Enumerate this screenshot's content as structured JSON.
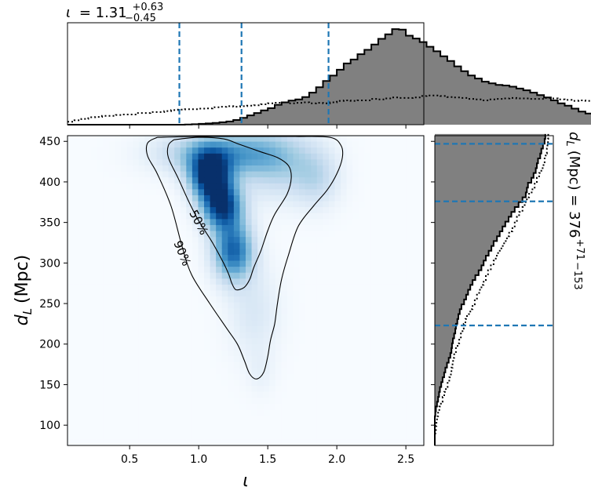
{
  "chart_data": {
    "type": "corner",
    "joint": {
      "type": "heatmap",
      "xlabel": "ι",
      "ylabel_base": "d",
      "ylabel_sub": "L",
      "ylabel_unit": "(Mpc)",
      "xlim": [
        0.05,
        2.63
      ],
      "ylim": [
        75,
        457
      ],
      "xticks": [
        "0.5",
        "1.0",
        "1.5",
        "2.0",
        "2.5"
      ],
      "yticks": [
        "100",
        "150",
        "200",
        "250",
        "300",
        "350",
        "400",
        "450"
      ],
      "colormap": "Blues",
      "density_peaks": [
        {
          "x": 1.08,
          "y": 408,
          "sx": 0.1,
          "sy": 20,
          "w": 1.0
        },
        {
          "x": 1.17,
          "y": 370,
          "sx": 0.1,
          "sy": 20,
          "w": 0.9
        },
        {
          "x": 1.25,
          "y": 315,
          "sx": 0.1,
          "sy": 25,
          "w": 0.75
        },
        {
          "x": 1.15,
          "y": 435,
          "sx": 0.28,
          "sy": 18,
          "w": 0.5
        },
        {
          "x": 1.55,
          "y": 425,
          "sx": 0.2,
          "sy": 30,
          "w": 0.3
        },
        {
          "x": 1.85,
          "y": 405,
          "sx": 0.12,
          "sy": 25,
          "w": 0.22
        },
        {
          "x": 1.4,
          "y": 240,
          "sx": 0.13,
          "sy": 40,
          "w": 0.14
        },
        {
          "x": 1.45,
          "y": 165,
          "sx": 0.07,
          "sy": 20,
          "w": 0.06
        }
      ],
      "contours": [
        {
          "label": "50%",
          "points": [
            [
              0.82,
              452
            ],
            [
              1.0,
              455
            ],
            [
              1.18,
              453
            ],
            [
              1.3,
              446
            ],
            [
              1.45,
              437
            ],
            [
              1.57,
              430
            ],
            [
              1.65,
              420
            ],
            [
              1.67,
              405
            ],
            [
              1.64,
              385
            ],
            [
              1.55,
              360
            ],
            [
              1.5,
              340
            ],
            [
              1.45,
              315
            ],
            [
              1.4,
              295
            ],
            [
              1.37,
              280
            ],
            [
              1.33,
              270
            ],
            [
              1.27,
              267
            ],
            [
              1.24,
              275
            ],
            [
              1.22,
              285
            ],
            [
              1.18,
              300
            ],
            [
              1.1,
              325
            ],
            [
              1.0,
              352
            ],
            [
              0.93,
              375
            ],
            [
              0.85,
              405
            ],
            [
              0.78,
              430
            ],
            [
              0.78,
              445
            ],
            [
              0.82,
              452
            ]
          ]
        },
        {
          "label": "90%",
          "points": [
            [
              0.7,
              455
            ],
            [
              1.0,
              456
            ],
            [
              1.35,
              456
            ],
            [
              1.7,
              456
            ],
            [
              1.95,
              455
            ],
            [
              2.03,
              445
            ],
            [
              2.04,
              430
            ],
            [
              2.0,
              410
            ],
            [
              1.93,
              390
            ],
            [
              1.83,
              370
            ],
            [
              1.72,
              345
            ],
            [
              1.65,
              310
            ],
            [
              1.6,
              280
            ],
            [
              1.57,
              250
            ],
            [
              1.55,
              225
            ],
            [
              1.52,
              205
            ],
            [
              1.5,
              185
            ],
            [
              1.47,
              165
            ],
            [
              1.42,
              157
            ],
            [
              1.37,
              163
            ],
            [
              1.33,
              180
            ],
            [
              1.28,
              200
            ],
            [
              1.2,
              220
            ],
            [
              1.08,
              250
            ],
            [
              0.95,
              285
            ],
            [
              0.88,
              320
            ],
            [
              0.8,
              370
            ],
            [
              0.7,
              410
            ],
            [
              0.63,
              432
            ],
            [
              0.63,
              448
            ],
            [
              0.7,
              455
            ]
          ]
        }
      ]
    },
    "top": {
      "type": "histogram",
      "title_symbol": "ι",
      "title_value": "= 1.31",
      "title_plus": "+0.63",
      "title_minus": "−0.45",
      "bin_edges_start": 0.05,
      "bin_width": 0.05,
      "posterior_counts": [
        0,
        0,
        0,
        0,
        0,
        0,
        0,
        0,
        0,
        0,
        0,
        0,
        0,
        0,
        0,
        0,
        0,
        0.2,
        0.5,
        0.9,
        1.3,
        1.8,
        2.5,
        3.3,
        4.8,
        7,
        9.6,
        12,
        14.7,
        17,
        20.5,
        23,
        24.8,
        26,
        28.5,
        33,
        38.5,
        45,
        50.5,
        56.5,
        63,
        67,
        72.5,
        77,
        82.5,
        88.3,
        93,
        98.3,
        97.8,
        91.5,
        88.6,
        85,
        80.2,
        75.5,
        70.3,
        65.5,
        60,
        55.1,
        50.6,
        47.5,
        44.3,
        42.5,
        41,
        40.3,
        39.1,
        37.2,
        35.4,
        33,
        30.5,
        28,
        25,
        22,
        19.5,
        16.5,
        13.5,
        11.5,
        9,
        7,
        5.5,
        4.5,
        3.5,
        3,
        2,
        1.5,
        1,
        0.5,
        0,
        0,
        0,
        0,
        0,
        0,
        0
      ],
      "prior_counts": [
        3,
        4.5,
        6,
        7.7,
        8,
        9,
        9,
        10,
        10.5,
        10.5,
        12,
        12,
        13,
        13,
        14,
        15,
        15.5,
        16,
        16,
        16.5,
        16.7,
        18,
        18.5,
        19,
        18.5,
        19,
        19.5,
        20,
        21,
        22,
        22.6,
        23,
        22,
        22.5,
        23,
        22,
        22.5,
        22,
        23,
        24.5,
        25,
        24.5,
        25,
        25,
        26.5,
        26,
        27,
        28,
        27.5,
        27.5,
        28,
        29.5,
        30,
        30,
        29.5,
        28.5,
        28,
        27.5,
        26.5,
        26,
        25,
        26,
        26.5,
        27,
        27.5,
        27,
        27,
        26.5,
        26.5,
        27.5,
        27,
        26,
        25.5,
        24.5,
        25,
        24.5,
        24.5,
        23.5,
        23,
        22,
        21,
        22,
        21,
        20,
        19,
        18,
        17,
        17.5,
        16.5,
        15.5,
        14.5,
        13,
        13
      ],
      "quantiles": [
        0.86,
        1.31,
        1.94
      ]
    },
    "right": {
      "type": "histogram",
      "title_base": "d",
      "title_sub": "L",
      "title_rest": "(Mpc) = 376",
      "title_plus": "+71",
      "title_minus": "−153",
      "bin_edges_start": 75,
      "bin_width": 6,
      "posterior_counts": [
        0,
        0,
        0,
        0,
        0,
        0,
        0.5,
        1,
        2,
        3,
        3.8,
        4.6,
        5.8,
        7,
        8.4,
        9.5,
        11,
        12.5,
        14,
        15,
        15.5,
        16.3,
        17.4,
        18.5,
        19,
        20.3,
        21.2,
        22.5,
        24,
        26.4,
        28.2,
        30,
        32,
        34,
        36.5,
        39.5,
        42,
        44,
        46,
        48.5,
        51,
        53,
        56,
        58.5,
        61,
        63.5,
        66.5,
        69,
        72,
        75.5,
        79,
        82,
        83,
        84,
        87,
        89,
        91,
        92,
        93,
        95,
        96,
        97.5,
        99,
        99.6
      ],
      "prior_counts": [
        0,
        0,
        0.5,
        1,
        1.5,
        2,
        3,
        4,
        5.5,
        7,
        8.5,
        10,
        11.5,
        13,
        14.5,
        15,
        16,
        16.5,
        17.5,
        19,
        20.5,
        22,
        23.5,
        25,
        26,
        27.6,
        29,
        32,
        34,
        36,
        38,
        40,
        42,
        44,
        46,
        48,
        50.5,
        53,
        55,
        57,
        60,
        62.5,
        65,
        67,
        70,
        72,
        74,
        76,
        79,
        81,
        83,
        85,
        88,
        90,
        92,
        94,
        96,
        98,
        99,
        100,
        101,
        101.5,
        102,
        102.2
      ],
      "quantiles": [
        223,
        376,
        447
      ]
    }
  }
}
